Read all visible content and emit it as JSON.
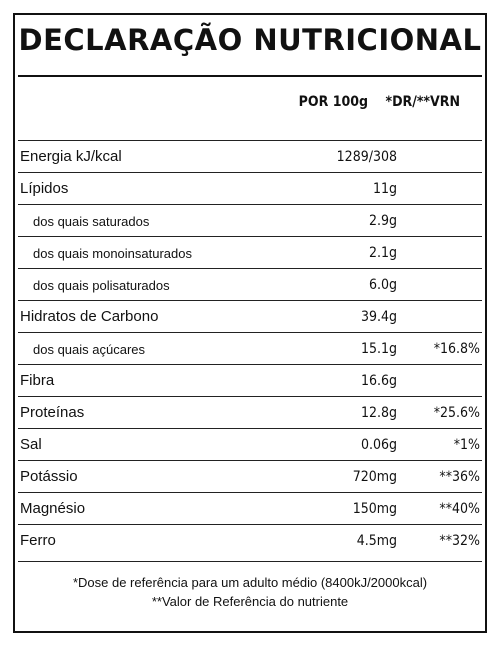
{
  "title": "DECLARAÇÃO NUTRICIONAL",
  "headers": {
    "per_100g": "POR 100g",
    "dr": "*DR/**VRN"
  },
  "rows": [
    {
      "label": "Energia kJ/kcal",
      "value": "1289/308",
      "dr": "",
      "sub": false
    },
    {
      "label": "Lípidos",
      "value": "11g",
      "dr": "",
      "sub": false
    },
    {
      "label": "dos quais saturados",
      "value": "2.9g",
      "dr": "",
      "sub": true
    },
    {
      "label": "dos quais monoinsaturados",
      "value": "2.1g",
      "dr": "",
      "sub": true
    },
    {
      "label": "dos quais polisaturados",
      "value": "6.0g",
      "dr": "",
      "sub": true
    },
    {
      "label": "Hidratos de Carbono",
      "value": "39.4g",
      "dr": "",
      "sub": false
    },
    {
      "label": "dos quais açúcares",
      "value": "15.1g",
      "dr": "*16.8%",
      "sub": true
    },
    {
      "label": "Fibra",
      "value": "16.6g",
      "dr": "",
      "sub": false
    },
    {
      "label": "Proteínas",
      "value": "12.8g",
      "dr": "*25.6%",
      "sub": false
    },
    {
      "label": "Sal",
      "value": "0.06g",
      "dr": "*1%",
      "sub": false
    },
    {
      "label": "Potássio",
      "value": "720mg",
      "dr": "**36%",
      "sub": false
    },
    {
      "label": "Magnésio",
      "value": "150mg",
      "dr": "**40%",
      "sub": false
    },
    {
      "label": "Ferro",
      "value": "4.5mg",
      "dr": "**32%",
      "sub": false
    }
  ],
  "footnotes": [
    "*Dose de referência para um adulto médio (8400kJ/2000kcal)",
    "**Valor de Referência do nutriente"
  ]
}
